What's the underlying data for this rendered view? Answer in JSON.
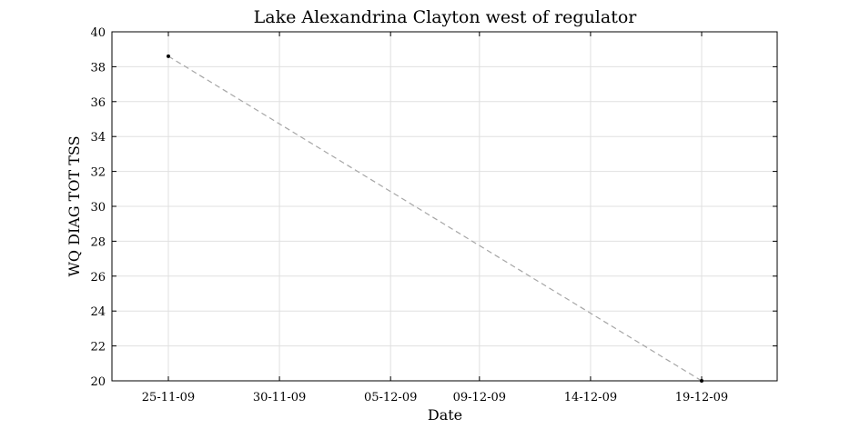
{
  "chart_data": {
    "type": "line",
    "title": "Lake Alexandrina Clayton west of regulator",
    "xlabel": "Date",
    "ylabel": "WQ DIAG TOT TSS",
    "x_ticks": [
      "25-11-09",
      "30-11-09",
      "05-12-09",
      "09-12-09",
      "14-12-09",
      "19-12-09"
    ],
    "y_ticks": [
      "20",
      "22",
      "24",
      "26",
      "28",
      "30",
      "32",
      "34",
      "36",
      "38",
      "40"
    ],
    "ylim": [
      20,
      40
    ],
    "grid": true,
    "line_style": "dashed",
    "colors": {
      "line": "#a6a6a6",
      "marker": "#000000",
      "grid": "#e0e0e0",
      "axis": "#000000"
    },
    "series": [
      {
        "points": [
          {
            "x": "25-11-09",
            "y": 38.6
          },
          {
            "x": "19-12-09",
            "y": 20.0
          }
        ]
      }
    ]
  }
}
